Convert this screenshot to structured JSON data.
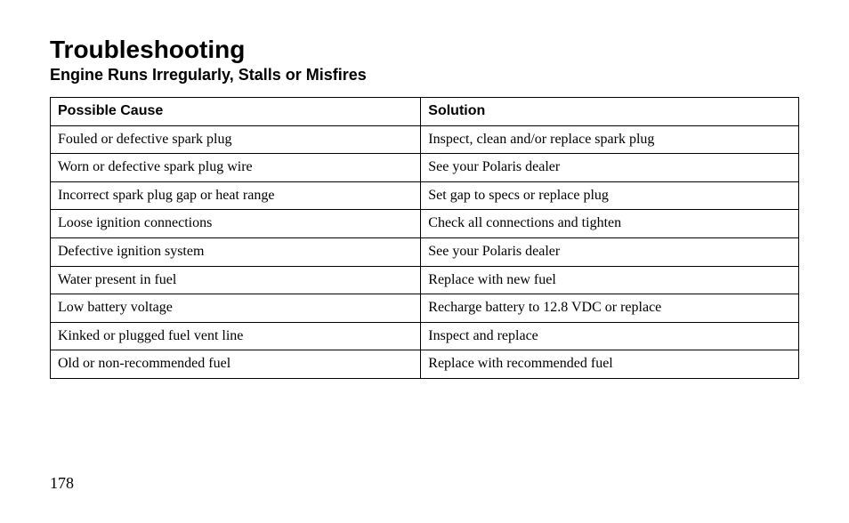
{
  "heading": {
    "title": "Troubleshooting",
    "subtitle": "Engine Runs Irregularly, Stalls or Misfires"
  },
  "table": {
    "columns": [
      "Possible Cause",
      "Solution"
    ],
    "rows": [
      [
        "Fouled or defective spark plug",
        "Inspect, clean and/or replace spark plug"
      ],
      [
        "Worn or defective spark plug wire",
        "See your Polaris dealer"
      ],
      [
        "Incorrect spark plug gap or heat range",
        "Set gap to specs or replace plug"
      ],
      [
        "Loose ignition connections",
        "Check all connections and tighten"
      ],
      [
        "Defective ignition system",
        "See your Polaris dealer"
      ],
      [
        "Water present in fuel",
        "Replace with new fuel"
      ],
      [
        "Low battery voltage",
        "Recharge battery to 12.8 VDC or replace"
      ],
      [
        "Kinked or plugged fuel vent line",
        "Inspect and replace"
      ],
      [
        "Old or non-recommended fuel",
        "Replace with recommended fuel"
      ]
    ]
  },
  "page_number": "178"
}
